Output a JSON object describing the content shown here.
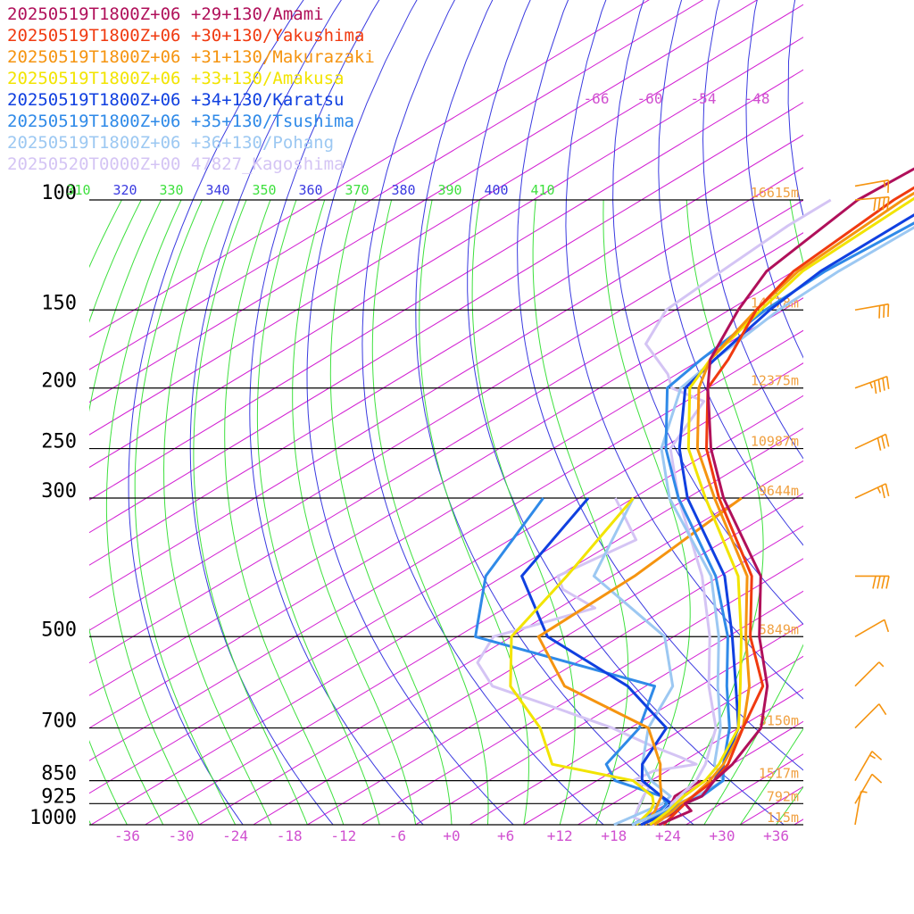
{
  "legend": [
    {
      "label": "20250519T1800Z+06 +29+130/Amami",
      "color": "#b0105a"
    },
    {
      "label": "20250519T1800Z+06 +30+130/Yakushima",
      "color": "#f03a10"
    },
    {
      "label": "20250519T1800Z+06 +31+130/Makurazaki",
      "color": "#f59410"
    },
    {
      "label": "20250519T1800Z+06 +33+130/Amakusa",
      "color": "#f2e400"
    },
    {
      "label": "20250519T1800Z+06 +34+130/Karatsu",
      "color": "#1040e0"
    },
    {
      "label": "20250519T1800Z+06 +35+130/Tsushima",
      "color": "#2f8ae8"
    },
    {
      "label": "20250519T1800Z+06 +36+130/Pohang",
      "color": "#9cc8f2"
    },
    {
      "label": "20250520T0000Z+00 47827_Kagoshima",
      "color": "#d4c4f4"
    }
  ],
  "chart_data": {
    "type": "line",
    "title": "",
    "pressure_levels": [
      {
        "p": 100,
        "label": "100",
        "height": "16615m"
      },
      {
        "p": 150,
        "label": "150",
        "height": "14178m"
      },
      {
        "p": 200,
        "label": "200",
        "height": "12375m"
      },
      {
        "p": 250,
        "label": "250",
        "height": "10987m"
      },
      {
        "p": 300,
        "label": "300",
        "height": "9644m"
      },
      {
        "p": 500,
        "label": "500",
        "height": "5849m"
      },
      {
        "p": 700,
        "label": "700",
        "height": "3150m"
      },
      {
        "p": 850,
        "label": "850",
        "height": "1517m"
      },
      {
        "p": 925,
        "label": "925",
        "height": "792m"
      },
      {
        "p": 1000,
        "label": "1000",
        "height": "115m"
      }
    ],
    "x_ticks": [
      "-36",
      "-30",
      "-24",
      "-18",
      "-12",
      "-6",
      "+0",
      "+6",
      "+12",
      "+18",
      "+24",
      "+30",
      "+36"
    ],
    "x_tick_values": [
      -36,
      -30,
      -24,
      -18,
      -12,
      -6,
      0,
      6,
      12,
      18,
      24,
      30,
      36
    ],
    "theta_labels": [
      "310",
      "320",
      "330",
      "340",
      "350",
      "360",
      "370",
      "380",
      "390",
      "400",
      "410"
    ],
    "mixing_labels": [
      "-66",
      "-60",
      "-54",
      "-48"
    ],
    "xlim": [
      -40,
      40
    ],
    "ylim": [
      1000,
      100
    ],
    "temperature_profiles": [
      {
        "name": "20250519T1800Z+06 +29+130/Amami",
        "points": [
          [
            1000,
            23
          ],
          [
            950,
            24
          ],
          [
            925,
            22
          ],
          [
            900,
            22.5
          ],
          [
            850,
            21
          ],
          [
            800,
            20
          ],
          [
            700,
            16.5
          ],
          [
            600,
            9.5
          ],
          [
            500,
            -0.5
          ],
          [
            400,
            -11.5
          ],
          [
            300,
            -30
          ],
          [
            250,
            -40.5
          ],
          [
            200,
            -52
          ],
          [
            180,
            -57
          ],
          [
            150,
            -63
          ],
          [
            130,
            -67
          ],
          [
            100,
            -70
          ],
          [
            80,
            -69
          ]
        ]
      },
      {
        "name": "20250519T1800Z+06 +30+130/Yakushima",
        "points": [
          [
            1000,
            23.5
          ],
          [
            950,
            22.5
          ],
          [
            925,
            22
          ],
          [
            900,
            21.5
          ],
          [
            850,
            21
          ],
          [
            800,
            19.5
          ],
          [
            700,
            14.5
          ],
          [
            600,
            9
          ],
          [
            500,
            -1.5
          ],
          [
            400,
            -12.5
          ],
          [
            300,
            -30.5
          ],
          [
            250,
            -41
          ],
          [
            200,
            -52
          ],
          [
            180,
            -55
          ],
          [
            150,
            -61
          ],
          [
            130,
            -64
          ],
          [
            100,
            -66
          ],
          [
            80,
            -66
          ]
        ]
      },
      {
        "name": "20250519T1800Z+06 +31+130/Makurazaki",
        "points": [
          [
            1000,
            22.5
          ],
          [
            950,
            22
          ],
          [
            925,
            21.5
          ],
          [
            900,
            21.5
          ],
          [
            850,
            20.5
          ],
          [
            800,
            19
          ],
          [
            700,
            14.5
          ],
          [
            600,
            7.5
          ],
          [
            500,
            -2
          ],
          [
            400,
            -13
          ],
          [
            300,
            -31
          ],
          [
            250,
            -42
          ],
          [
            200,
            -53
          ],
          [
            180,
            -57
          ],
          [
            150,
            -61
          ],
          [
            130,
            -63.5
          ],
          [
            100,
            -65
          ],
          [
            80,
            -65
          ]
        ]
      },
      {
        "name": "20250519T1800Z+06 +33+130/Amakusa",
        "points": [
          [
            1000,
            22
          ],
          [
            950,
            21.5
          ],
          [
            925,
            21
          ],
          [
            900,
            20.5
          ],
          [
            850,
            20
          ],
          [
            800,
            18.5
          ],
          [
            700,
            14
          ],
          [
            600,
            6.5
          ],
          [
            500,
            -2.5
          ],
          [
            400,
            -14
          ],
          [
            300,
            -32
          ],
          [
            250,
            -43
          ],
          [
            200,
            -54
          ],
          [
            180,
            -57
          ],
          [
            150,
            -60.5
          ],
          [
            130,
            -63
          ],
          [
            100,
            -64
          ],
          [
            80,
            -64
          ]
        ]
      },
      {
        "name": "20250519T1800Z+06 +34+130/Karatsu",
        "points": [
          [
            1000,
            21
          ],
          [
            950,
            22
          ],
          [
            925,
            22
          ],
          [
            900,
            22.5
          ],
          [
            850,
            21
          ],
          [
            800,
            19
          ],
          [
            700,
            14
          ],
          [
            600,
            6
          ],
          [
            500,
            -3.5
          ],
          [
            400,
            -15.5
          ],
          [
            300,
            -34
          ],
          [
            250,
            -44
          ],
          [
            200,
            -54.5
          ],
          [
            180,
            -56.5
          ],
          [
            150,
            -59.5
          ],
          [
            130,
            -61
          ],
          [
            100,
            -61
          ],
          [
            80,
            -60
          ]
        ]
      },
      {
        "name": "20250519T1800Z+06 +35+130/Tsushima",
        "points": [
          [
            1000,
            21
          ],
          [
            950,
            21.5
          ],
          [
            925,
            21.5
          ],
          [
            900,
            22.5
          ],
          [
            850,
            22
          ],
          [
            800,
            19
          ],
          [
            700,
            13
          ],
          [
            600,
            5
          ],
          [
            500,
            -4
          ],
          [
            400,
            -16.5
          ],
          [
            300,
            -35
          ],
          [
            250,
            -45.5
          ],
          [
            200,
            -56.5
          ],
          [
            180,
            -58
          ],
          [
            150,
            -60
          ],
          [
            130,
            -60.5
          ],
          [
            100,
            -59
          ],
          [
            80,
            -58
          ]
        ]
      },
      {
        "name": "20250519T1800Z+06 +36+130/Pohang",
        "points": [
          [
            1000,
            20
          ],
          [
            950,
            21
          ],
          [
            925,
            21
          ],
          [
            900,
            22
          ],
          [
            850,
            22
          ],
          [
            800,
            18
          ],
          [
            700,
            12
          ],
          [
            600,
            4
          ],
          [
            500,
            -5
          ],
          [
            400,
            -17
          ],
          [
            300,
            -36
          ],
          [
            250,
            -46
          ],
          [
            200,
            -55
          ],
          [
            180,
            -56.5
          ],
          [
            150,
            -58.5
          ],
          [
            130,
            -59
          ],
          [
            100,
            -58.5
          ],
          [
            80,
            -58
          ]
        ]
      },
      {
        "name": "20250520T0000Z+00 47827_Kagoshima",
        "points": [
          [
            1000,
            23.5
          ],
          [
            975,
            22
          ],
          [
            950,
            21.5
          ],
          [
            925,
            20.5
          ],
          [
            900,
            20
          ],
          [
            850,
            19
          ],
          [
            800,
            17
          ],
          [
            700,
            11.5
          ],
          [
            600,
            3
          ],
          [
            500,
            -6
          ],
          [
            400,
            -18
          ],
          [
            300,
            -35
          ],
          [
            250,
            -45
          ],
          [
            210,
            -50
          ],
          [
            200,
            -56
          ],
          [
            190,
            -59
          ],
          [
            170,
            -67
          ],
          [
            150,
            -71
          ],
          [
            130,
            -72
          ],
          [
            110,
            -73
          ],
          [
            100,
            -73
          ]
        ]
      }
    ],
    "dewpoint_profiles": [
      {
        "name": "20250519T1800Z+06 +29+130/Amami",
        "points": [
          [
            1000,
            22
          ],
          [
            950,
            22.5
          ],
          [
            925,
            20.5
          ],
          [
            900,
            19.5
          ],
          [
            850,
            19.5
          ]
        ]
      },
      {
        "name": "20250519T1800Z+06 +30+130/Yakushima",
        "points": [
          [
            1000,
            22.5
          ],
          [
            950,
            21.5
          ],
          [
            925,
            21
          ],
          [
            900,
            20.5
          ],
          [
            850,
            20
          ]
        ]
      },
      {
        "name": "20250519T1800Z+06 +31+130/Makurazaki",
        "points": [
          [
            1000,
            21.5
          ],
          [
            950,
            20
          ],
          [
            925,
            19
          ],
          [
            900,
            18
          ],
          [
            850,
            15
          ],
          [
            800,
            12
          ],
          [
            700,
            4
          ],
          [
            600,
            -13
          ],
          [
            500,
            -25
          ],
          [
            400,
            -25.5
          ],
          [
            300,
            -28
          ]
        ]
      },
      {
        "name": "20250519T1800Z+06 +33+130/Amakusa",
        "points": [
          [
            1000,
            20.5
          ],
          [
            950,
            19.5
          ],
          [
            925,
            18.5
          ],
          [
            900,
            17
          ],
          [
            850,
            12
          ],
          [
            800,
            0
          ],
          [
            700,
            -8
          ],
          [
            600,
            -19
          ],
          [
            500,
            -28
          ],
          [
            400,
            -33
          ],
          [
            300,
            -40
          ]
        ]
      },
      {
        "name": "20250519T1800Z+06 +34+130/Karatsu",
        "points": [
          [
            1000,
            20
          ],
          [
            950,
            21
          ],
          [
            925,
            20.5
          ],
          [
            900,
            18
          ],
          [
            850,
            13
          ],
          [
            800,
            10
          ],
          [
            700,
            6
          ],
          [
            600,
            -6
          ],
          [
            500,
            -24
          ],
          [
            400,
            -38
          ],
          [
            300,
            -45
          ]
        ]
      },
      {
        "name": "20250519T1800Z+06 +35+130/Tsushima",
        "points": [
          [
            1000,
            20
          ],
          [
            950,
            20.5
          ],
          [
            925,
            20
          ],
          [
            900,
            18
          ],
          [
            850,
            10
          ],
          [
            800,
            6
          ],
          [
            700,
            3
          ],
          [
            600,
            -3
          ],
          [
            500,
            -32
          ],
          [
            400,
            -42
          ],
          [
            300,
            -50
          ]
        ]
      },
      {
        "name": "20250519T1800Z+06 +36+130/Pohang",
        "points": [
          [
            1000,
            18
          ],
          [
            950,
            19
          ],
          [
            925,
            19.5
          ],
          [
            900,
            19
          ],
          [
            850,
            14
          ],
          [
            800,
            10
          ],
          [
            700,
            4
          ],
          [
            600,
            -1
          ],
          [
            500,
            -11
          ],
          [
            400,
            -30
          ],
          [
            300,
            -40
          ]
        ]
      },
      {
        "name": "20250520T0000Z+00 47827_Kagoshima",
        "points": [
          [
            1000,
            22.5
          ],
          [
            975,
            19
          ],
          [
            950,
            18
          ],
          [
            925,
            17
          ],
          [
            900,
            16
          ],
          [
            870,
            15
          ],
          [
            850,
            12
          ],
          [
            820,
            12.5
          ],
          [
            800,
            16
          ],
          [
            780,
            13
          ],
          [
            750,
            8
          ],
          [
            700,
            0
          ],
          [
            650,
            -10
          ],
          [
            600,
            -21
          ],
          [
            550,
            -27
          ],
          [
            500,
            -30
          ],
          [
            450,
            -24
          ],
          [
            420,
            -31
          ],
          [
            400,
            -34
          ],
          [
            350,
            -32
          ],
          [
            300,
            -42
          ]
        ]
      }
    ],
    "wind_barbs": [
      {
        "p": 95,
        "dir": 260,
        "kt": 15
      },
      {
        "p": 100,
        "dir": 265,
        "kt": 40
      },
      {
        "p": 150,
        "dir": 260,
        "kt": 30
      },
      {
        "p": 200,
        "dir": 250,
        "kt": 45
      },
      {
        "p": 250,
        "dir": 245,
        "kt": 30
      },
      {
        "p": 300,
        "dir": 245,
        "kt": 25
      },
      {
        "p": 400,
        "dir": 270,
        "kt": 40
      },
      {
        "p": 500,
        "dir": 240,
        "kt": 10
      },
      {
        "p": 600,
        "dir": 225,
        "kt": 5
      },
      {
        "p": 700,
        "dir": 225,
        "kt": 10
      },
      {
        "p": 850,
        "dir": 210,
        "kt": 15
      },
      {
        "p": 925,
        "dir": 210,
        "kt": 10
      },
      {
        "p": 1000,
        "dir": 190,
        "kt": 5
      }
    ],
    "grid": true,
    "colors": {
      "isobar": "#000000",
      "isotherm": "#d21ed2",
      "dry_adiabat": "#3a3ae0",
      "moist_adiabat": "#3ee03e",
      "height_label": "#f0a040",
      "x_tick": "#d050d0",
      "wind": "#f59410"
    }
  }
}
